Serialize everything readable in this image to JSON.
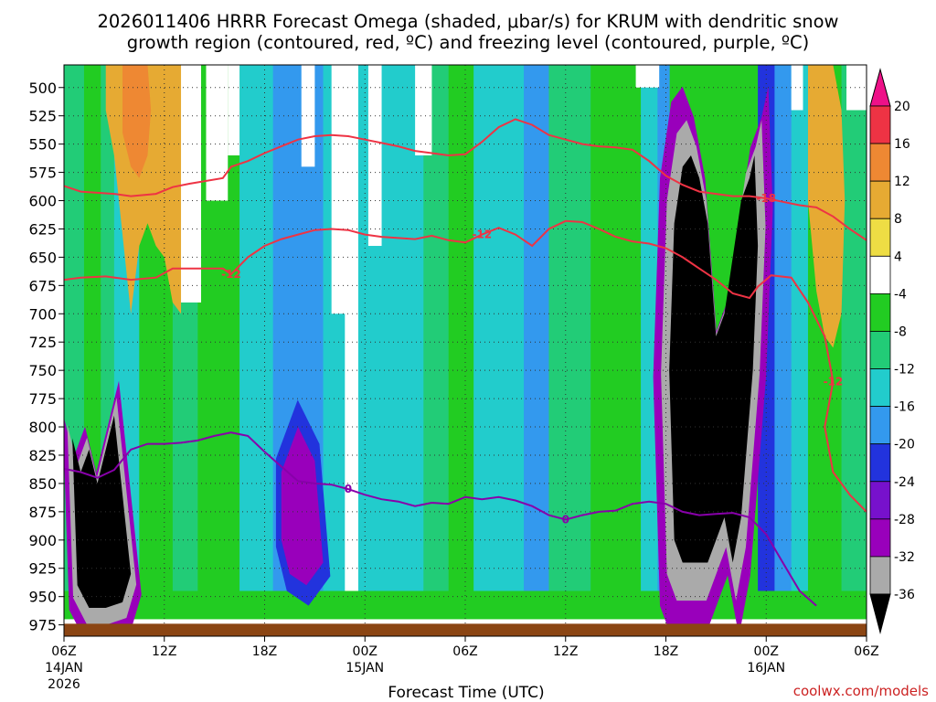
{
  "chart_data": {
    "type": "heatmap",
    "title_line1": "2026011406 HRRR Forecast Omega (shaded, μbar/s) for KRUM with dendritic snow",
    "title_line2": "growth region (contoured, red, ºC) and freezing level (contoured, purple, ºC)",
    "xlabel": "Forecast Time (UTC)",
    "credit": "coolwx.com/models",
    "x_ticks": [
      {
        "hour": 0,
        "label": "06Z",
        "sub1": "14JAN",
        "sub2": "2026"
      },
      {
        "hour": 6,
        "label": "12Z",
        "sub1": "",
        "sub2": ""
      },
      {
        "hour": 12,
        "label": "18Z",
        "sub1": "",
        "sub2": ""
      },
      {
        "hour": 18,
        "label": "00Z",
        "sub1": "15JAN",
        "sub2": ""
      },
      {
        "hour": 24,
        "label": "06Z",
        "sub1": "",
        "sub2": ""
      },
      {
        "hour": 30,
        "label": "12Z",
        "sub1": "",
        "sub2": ""
      },
      {
        "hour": 36,
        "label": "18Z",
        "sub1": "",
        "sub2": ""
      },
      {
        "hour": 42,
        "label": "00Z",
        "sub1": "16JAN",
        "sub2": ""
      },
      {
        "hour": 48,
        "label": "06Z",
        "sub1": "",
        "sub2": ""
      }
    ],
    "y_ticks": [
      500,
      525,
      550,
      575,
      600,
      625,
      650,
      675,
      700,
      725,
      750,
      775,
      800,
      825,
      850,
      875,
      900,
      925,
      950,
      975
    ],
    "y_range_mb": [
      480,
      985
    ],
    "x_range_hours": [
      0,
      48
    ],
    "colorbar": {
      "ticks": [
        20,
        16,
        12,
        8,
        4,
        -4,
        -8,
        -12,
        -16,
        -20,
        -24,
        -28,
        -32,
        -36
      ],
      "bins": [
        {
          "range": "16 to 20",
          "color": "#ee3344"
        },
        {
          "range": "12 to 16",
          "color": "#ee8833"
        },
        {
          "range": "8 to 12",
          "color": "#e6aa33"
        },
        {
          "range": "4 to 8",
          "color": "#eedd44"
        },
        {
          "range": "-4 to 4",
          "color": "#ffffff"
        },
        {
          "range": "-8 to -4",
          "color": "#22cc22"
        },
        {
          "range": "-12 to -8",
          "color": "#22cc77"
        },
        {
          "range": "-16 to -12",
          "color": "#22cccc"
        },
        {
          "range": "-20 to -16",
          "color": "#3399ee"
        },
        {
          "range": "-24 to -20",
          "color": "#2233dd"
        },
        {
          "range": "-28 to -24",
          "color": "#7711cc"
        },
        {
          "range": "-32 to -28",
          "color": "#9900bb"
        },
        {
          "range": "-36 to -32",
          "color": "#aaaaaa"
        },
        {
          "range": "< -36",
          "color": "#000000"
        }
      ],
      "top_arrow_color": "#ee1188",
      "bottom_arrow_color": "#000000"
    },
    "omega_regions": [
      {
        "name": "positive-omega-12h",
        "value": 8,
        "x": [
          2.5,
          3,
          3.5,
          4,
          4.5,
          5,
          5.5,
          6,
          6.5,
          7,
          7,
          6.5,
          6,
          5.5,
          5,
          4.5,
          4,
          3.5,
          3,
          2.5
        ],
        "p": [
          480,
          480,
          480,
          480,
          480,
          480,
          480,
          480,
          480,
          480,
          700,
          690,
          650,
          640,
          620,
          640,
          700,
          630,
          560,
          520
        ]
      },
      {
        "name": "core-12h",
        "value": 14,
        "x": [
          3.5,
          4,
          4.5,
          5,
          5.2,
          5,
          4.5,
          4,
          3.5
        ],
        "p": [
          480,
          480,
          480,
          480,
          520,
          560,
          580,
          570,
          540
        ]
      },
      {
        "name": "positive-omega-03z",
        "value": 2,
        "x": [
          16,
          17,
          17,
          16
        ],
        "p": [
          480,
          480,
          700,
          700
        ]
      },
      {
        "name": "positive-omega-02z-16jan",
        "value": 10,
        "x": [
          44.5,
          45,
          45.5,
          46,
          46.5,
          46.7,
          46.5,
          46,
          45.5,
          45,
          44.5
        ],
        "p": [
          480,
          480,
          480,
          480,
          520,
          600,
          700,
          730,
          720,
          680,
          600
        ]
      },
      {
        "name": "black-core-07z",
        "value": -40,
        "x": [
          0.5,
          1,
          1.5,
          2,
          2.5,
          3,
          3.5,
          4,
          3.5,
          2.5,
          1.5,
          0.8
        ],
        "p": [
          810,
          840,
          820,
          850,
          820,
          790,
          860,
          930,
          955,
          960,
          960,
          940
        ]
      },
      {
        "name": "black-core-19z-15jan",
        "value": -40,
        "x": [
          36.2,
          36.5,
          37,
          37.5,
          38,
          38.5,
          39,
          39.5,
          40,
          40.5,
          41,
          41.3,
          41.5,
          41.2,
          40.5,
          40,
          39.5,
          39,
          38.5,
          38,
          37,
          36.5
        ],
        "p": [
          750,
          620,
          570,
          560,
          580,
          620,
          720,
          700,
          650,
          600,
          580,
          560,
          640,
          750,
          880,
          920,
          880,
          900,
          920,
          920,
          920,
          900
        ]
      },
      {
        "name": "purple-core-21z",
        "value": -30,
        "x": [
          13,
          14,
          15,
          15.5,
          14.5,
          13.5,
          13
        ],
        "p": [
          840,
          800,
          830,
          920,
          940,
          930,
          900
        ]
      }
    ],
    "dgz_contours": [
      {
        "label": "-18",
        "points": [
          [
            0,
            587
          ],
          [
            1,
            592
          ],
          [
            3,
            594
          ],
          [
            4,
            596
          ],
          [
            5.5,
            594
          ],
          [
            6.5,
            588
          ],
          [
            7.5,
            585
          ],
          [
            9.5,
            580
          ],
          [
            10,
            570
          ],
          [
            11,
            565
          ],
          [
            12,
            558
          ],
          [
            13,
            552
          ],
          [
            14,
            546
          ],
          [
            15,
            543
          ],
          [
            16,
            542
          ],
          [
            17,
            543
          ],
          [
            18,
            546
          ],
          [
            19,
            549
          ],
          [
            20,
            552
          ],
          [
            21,
            556
          ],
          [
            22,
            558
          ],
          [
            23,
            560
          ],
          [
            24,
            559
          ],
          [
            25,
            548
          ],
          [
            26,
            535
          ],
          [
            27,
            528
          ],
          [
            28,
            533
          ],
          [
            29,
            542
          ],
          [
            30,
            546
          ],
          [
            31,
            550
          ],
          [
            32,
            552
          ],
          [
            33,
            553
          ],
          [
            34,
            555
          ],
          [
            35,
            565
          ],
          [
            36,
            578
          ],
          [
            37,
            586
          ],
          [
            38,
            592
          ],
          [
            39,
            594
          ],
          [
            40,
            596
          ],
          [
            41,
            596
          ],
          [
            42,
            598
          ],
          [
            43,
            601
          ],
          [
            44,
            604
          ],
          [
            45,
            606
          ],
          [
            46,
            614
          ],
          [
            47,
            625
          ],
          [
            48,
            635
          ]
        ]
      },
      {
        "label": "-12",
        "points": [
          [
            0,
            670
          ],
          [
            1,
            668
          ],
          [
            2.5,
            667
          ],
          [
            4,
            670
          ],
          [
            5.5,
            668
          ],
          [
            6.5,
            660
          ],
          [
            9.5,
            660
          ],
          [
            10,
            665
          ],
          [
            11,
            650
          ],
          [
            12,
            640
          ],
          [
            13,
            634
          ],
          [
            14,
            630
          ],
          [
            15,
            626
          ],
          [
            16,
            625
          ],
          [
            17,
            626
          ],
          [
            18,
            630
          ],
          [
            19,
            632
          ],
          [
            20,
            633
          ],
          [
            21,
            634
          ],
          [
            22,
            631
          ],
          [
            23,
            635
          ],
          [
            24,
            637
          ],
          [
            25,
            630
          ],
          [
            26,
            624
          ],
          [
            27,
            630
          ],
          [
            28,
            640
          ],
          [
            29,
            625
          ],
          [
            30,
            618
          ],
          [
            31,
            619
          ],
          [
            32,
            625
          ],
          [
            33,
            632
          ],
          [
            34,
            636
          ],
          [
            35,
            638
          ],
          [
            36,
            642
          ],
          [
            37,
            650
          ],
          [
            38,
            660
          ],
          [
            39,
            670
          ],
          [
            40,
            682
          ],
          [
            41,
            686
          ],
          [
            41.5,
            676
          ],
          [
            42.3,
            666
          ],
          [
            43.5,
            668
          ],
          [
            44.5,
            690
          ],
          [
            45.5,
            720
          ],
          [
            46,
            760
          ],
          [
            45.5,
            800
          ],
          [
            46,
            840
          ],
          [
            47,
            860
          ],
          [
            48,
            875
          ]
        ]
      }
    ],
    "freezing_level": {
      "label": "0",
      "points": [
        [
          0,
          837
        ],
        [
          1,
          840
        ],
        [
          2,
          845
        ],
        [
          3,
          838
        ],
        [
          4,
          820
        ],
        [
          5,
          815
        ],
        [
          6,
          815
        ],
        [
          7,
          814
        ],
        [
          8,
          812
        ],
        [
          9,
          808
        ],
        [
          10,
          805
        ],
        [
          11,
          808
        ],
        [
          12,
          822
        ],
        [
          13,
          835
        ],
        [
          14,
          848
        ],
        [
          15,
          850
        ],
        [
          16,
          851
        ],
        [
          17,
          855
        ],
        [
          18,
          860
        ],
        [
          19,
          864
        ],
        [
          20,
          866
        ],
        [
          21,
          870
        ],
        [
          22,
          867
        ],
        [
          23,
          868
        ],
        [
          24,
          862
        ],
        [
          25,
          864
        ],
        [
          26,
          862
        ],
        [
          27,
          865
        ],
        [
          28,
          870
        ],
        [
          29,
          878
        ],
        [
          30,
          882
        ],
        [
          31,
          878
        ],
        [
          32,
          875
        ],
        [
          33,
          874
        ],
        [
          34,
          868
        ],
        [
          35,
          866
        ],
        [
          36,
          868
        ],
        [
          37,
          875
        ],
        [
          38,
          878
        ],
        [
          39,
          877
        ],
        [
          40,
          876
        ],
        [
          41,
          880
        ],
        [
          42,
          895
        ],
        [
          43,
          920
        ],
        [
          44,
          945
        ],
        [
          45,
          958
        ]
      ]
    },
    "terrain_color": "#8b4513"
  }
}
